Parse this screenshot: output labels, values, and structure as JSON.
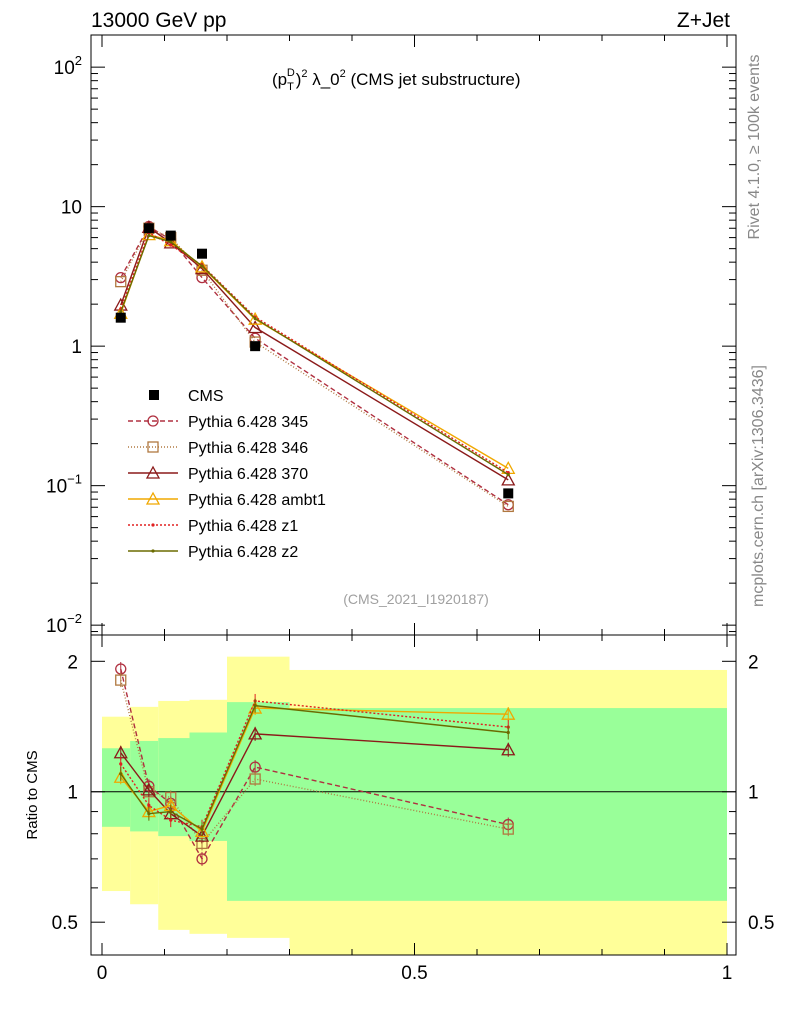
{
  "header": {
    "left": "13000 GeV pp",
    "right": "Z+Jet"
  },
  "side_text": {
    "top": "Rivet 4.1.0, ≥ 100k events",
    "bottom": "mcplots.cern.ch [arXiv:1306.3436]"
  },
  "chart_data": {
    "type": "line",
    "title": "(p_T^D)^2 λ_0^2 (CMS jet substructure)",
    "title_parts": {
      "open": "(p",
      "sub": "T",
      "sup": "D",
      "sq": "2",
      "mid": " λ_0",
      "tail": " (CMS jet substructure)"
    },
    "watermark": "(CMS_2021_I1920187)",
    "xlim": [
      0,
      1
    ],
    "x_ticks": [
      "0",
      "0.5",
      "1"
    ],
    "x_tick_values": [
      0,
      0.5,
      1
    ],
    "main": {
      "yscale": "log",
      "ylim": [
        0.0085,
        170
      ],
      "y_ticks": [
        {
          "value": 100,
          "base": "10",
          "exp": "2"
        },
        {
          "value": 10,
          "base": "10",
          "exp": ""
        },
        {
          "value": 1,
          "base": "1",
          "exp": ""
        },
        {
          "value": 0.1,
          "base": "10",
          "exp": "−1"
        },
        {
          "value": 0.01,
          "base": "10",
          "exp": "−2"
        }
      ]
    },
    "ratio": {
      "ylabel": "Ratio to CMS",
      "yscale": "log",
      "ylim": [
        0.42,
        2.3
      ],
      "y_ticks": [
        {
          "value": 2,
          "label": "2"
        },
        {
          "value": 1,
          "label": "1"
        },
        {
          "value": 0.5,
          "label": "0.5"
        }
      ],
      "bands": {
        "edges": [
          0.0,
          0.045,
          0.09,
          0.14,
          0.2,
          0.3,
          1.0
        ],
        "green_lo": [
          0.83,
          0.81,
          0.79,
          0.77,
          0.56,
          0.56
        ],
        "green_hi": [
          1.26,
          1.31,
          1.33,
          1.37,
          1.61,
          1.56
        ],
        "yellow_lo": [
          0.59,
          0.55,
          0.48,
          0.47,
          0.46,
          0.4
        ],
        "yellow_hi": [
          1.49,
          1.57,
          1.62,
          1.63,
          2.05,
          1.91
        ]
      }
    },
    "x": [
      0.03,
      0.075,
      0.11,
      0.16,
      0.245,
      0.65
    ],
    "data": {
      "name": "CMS",
      "values": [
        1.6,
        7.0,
        6.2,
        4.6,
        1.0,
        0.088
      ]
    },
    "series": [
      {
        "name": "Pythia 6.428 345",
        "color": "#b03040",
        "dash": "5,3",
        "marker": "circle",
        "values": [
          3.1,
          7.2,
          5.8,
          3.1,
          1.14,
          0.073
        ],
        "ratio": [
          1.92,
          1.03,
          0.94,
          0.7,
          1.14,
          0.84
        ]
      },
      {
        "name": "Pythia 6.428 346",
        "color": "#b07840",
        "dash": "1,2",
        "marker": "square",
        "values": [
          2.9,
          7.0,
          6.0,
          3.5,
          1.07,
          0.071
        ],
        "ratio": [
          1.81,
          1.0,
          0.97,
          0.76,
          1.07,
          0.82
        ]
      },
      {
        "name": "Pythia 6.428 370",
        "color": "#8b1a1a",
        "dash": "",
        "marker": "triangle",
        "values": [
          1.97,
          7.1,
          5.5,
          3.6,
          1.36,
          0.11
        ],
        "ratio": [
          1.23,
          1.01,
          0.89,
          0.79,
          1.36,
          1.25
        ]
      },
      {
        "name": "Pythia 6.428 ambt1",
        "color": "#f0a800",
        "dash": "",
        "marker": "triangle",
        "values": [
          1.72,
          6.3,
          5.7,
          3.7,
          1.56,
          0.133
        ],
        "ratio": [
          1.08,
          0.9,
          0.93,
          0.81,
          1.56,
          1.51
        ]
      },
      {
        "name": "Pythia 6.428 z1",
        "color": "#e02020",
        "dash": "2,2",
        "marker": "dot",
        "values": [
          1.85,
          6.5,
          5.3,
          3.8,
          1.62,
          0.124
        ],
        "ratio": [
          1.16,
          0.93,
          0.86,
          0.83,
          1.62,
          1.41
        ]
      },
      {
        "name": "Pythia 6.428 z2",
        "color": "#6b6b00",
        "dash": "",
        "marker": "dot",
        "values": [
          1.76,
          6.2,
          5.6,
          3.75,
          1.58,
          0.12
        ],
        "ratio": [
          1.1,
          0.89,
          0.9,
          0.82,
          1.58,
          1.37
        ]
      }
    ]
  }
}
